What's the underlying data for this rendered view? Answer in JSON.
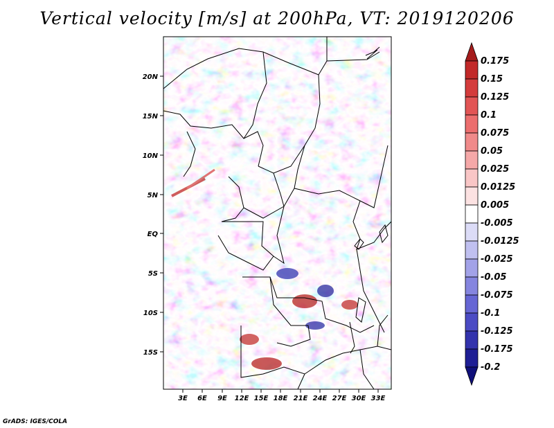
{
  "title": "Vertical velocity [m/s] at 200hPa, VT: 2019120206",
  "credit": "GrADS: IGES/COLA",
  "map": {
    "lat_labels": [
      "20N",
      "15N",
      "10N",
      "5N",
      "EQ",
      "5S",
      "10S",
      "15S"
    ],
    "lon_labels": [
      "3E",
      "6E",
      "9E",
      "12E",
      "15E",
      "18E",
      "21E",
      "24E",
      "27E",
      "30E",
      "33E"
    ]
  },
  "colorbar": {
    "levels": [
      "0.175",
      "0.15",
      "0.125",
      "0.1",
      "0.075",
      "0.05",
      "0.025",
      "0.0125",
      "0.005",
      "-0.005",
      "-0.0125",
      "-0.025",
      "-0.05",
      "-0.075",
      "-0.1",
      "-0.125",
      "-0.175",
      "-0.2"
    ],
    "colors": [
      "#a51c1c",
      "#c22929",
      "#d43c3c",
      "#e25555",
      "#ec6e6e",
      "#f08a8a",
      "#f5a8a8",
      "#f9c6c6",
      "#fce2e2",
      "#ffffff",
      "#dcdcf7",
      "#c0c0f0",
      "#a2a2e8",
      "#8585df",
      "#6666d4",
      "#4b4bc4",
      "#3333ad",
      "#1f1f95",
      "#10107a"
    ]
  },
  "colors": {
    "positive": "#e06060",
    "negative": "#6a6ad8",
    "neutral": "#ffffff"
  }
}
